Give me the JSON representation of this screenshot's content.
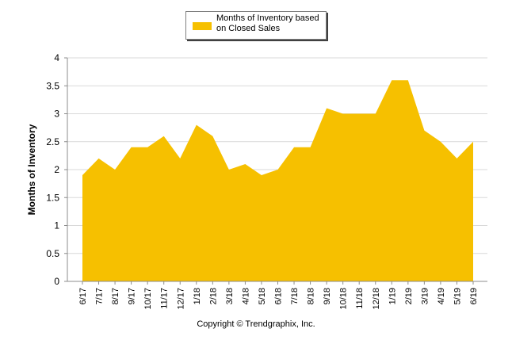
{
  "chart_data": {
    "type": "area",
    "title": "",
    "xlabel": "",
    "ylabel": "Months of Inventory",
    "ylim": [
      0,
      4
    ],
    "yticks": [
      "0",
      "0.5",
      "1",
      "1.5",
      "2",
      "2.5",
      "3",
      "3.5",
      "4"
    ],
    "ytick_values": [
      0,
      0.5,
      1,
      1.5,
      2,
      2.5,
      3,
      3.5,
      4
    ],
    "grid": true,
    "legend_position": "top-center",
    "categories": [
      "6/17",
      "7/17",
      "8/17",
      "9/17",
      "10/17",
      "11/17",
      "12/17",
      "1/18",
      "2/18",
      "3/18",
      "4/18",
      "5/18",
      "6/18",
      "7/18",
      "8/18",
      "9/18",
      "10/18",
      "11/18",
      "12/18",
      "1/19",
      "2/19",
      "3/19",
      "4/19",
      "5/19",
      "6/19"
    ],
    "series": [
      {
        "name": "Months of Inventory based on Closed Sales",
        "color": "#F6C000",
        "values": [
          1.9,
          2.2,
          2.0,
          2.4,
          2.4,
          2.6,
          2.2,
          2.8,
          2.6,
          2.0,
          2.1,
          1.9,
          2.0,
          2.4,
          2.4,
          3.1,
          3.0,
          3.0,
          3.0,
          3.6,
          3.6,
          2.7,
          2.5,
          2.2,
          2.5
        ]
      }
    ]
  },
  "legend": {
    "label_line1": "Months of Inventory based",
    "label_line2": "on Closed Sales"
  },
  "footer": {
    "copyright": "Copyright © Trendgraphix, Inc."
  }
}
